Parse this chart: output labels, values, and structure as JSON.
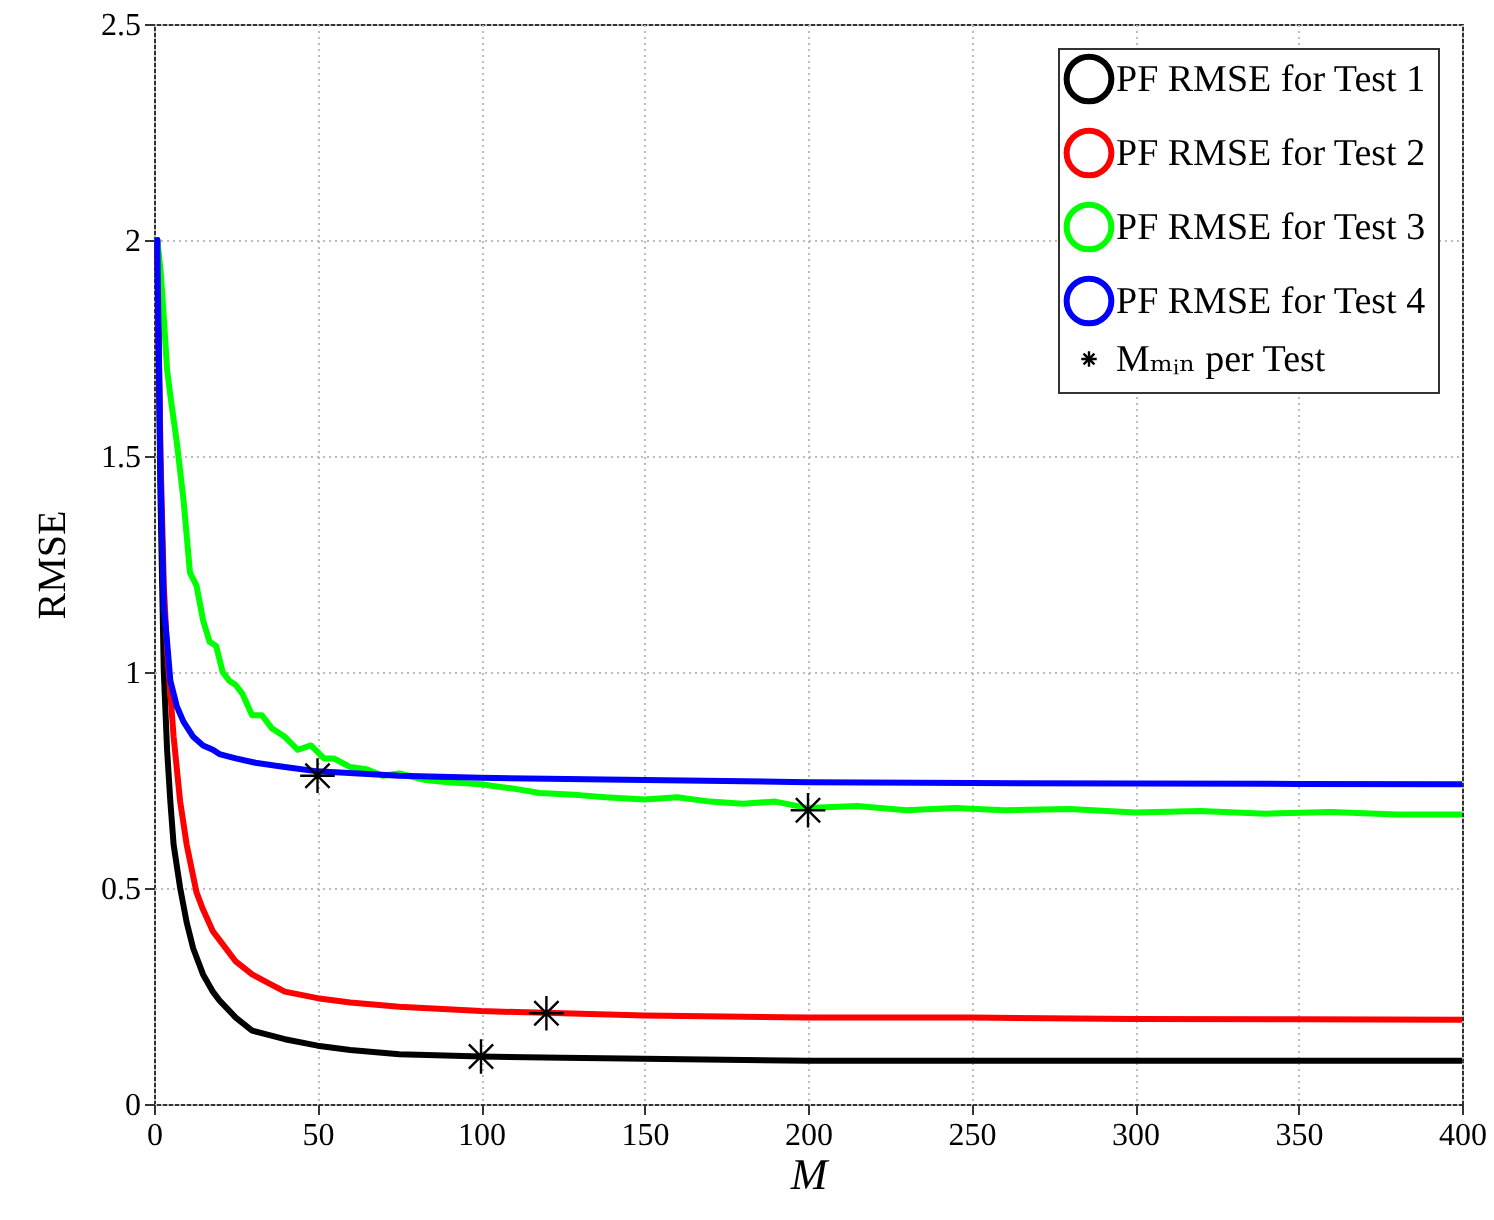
{
  "chart_data": {
    "type": "line",
    "xlabel": "M",
    "ylabel": "RMSE",
    "xlim": [
      0,
      400
    ],
    "xticks": [
      0,
      50,
      100,
      150,
      200,
      250,
      300,
      350,
      400
    ],
    "ylim": [
      0,
      2.5
    ],
    "yticks": [
      0,
      0.5,
      1,
      1.5,
      2,
      2.5
    ],
    "grid": true,
    "legend": "top right",
    "series": [
      {
        "name": "PF RMSE for Test 1",
        "color": "#000000",
        "x": [
          1,
          2,
          3,
          4,
          5,
          6,
          8,
          10,
          12,
          15,
          18,
          20,
          25,
          30,
          35,
          40,
          50,
          60,
          75,
          100,
          125,
          150,
          200,
          250,
          300,
          350,
          400
        ],
        "values": [
          2.0,
          1.4,
          1.0,
          0.82,
          0.7,
          0.6,
          0.5,
          0.42,
          0.36,
          0.3,
          0.26,
          0.24,
          0.2,
          0.17,
          0.16,
          0.15,
          0.135,
          0.125,
          0.115,
          0.11,
          0.107,
          0.105,
          0.1,
          0.1,
          0.1,
          0.1,
          0.1
        ]
      },
      {
        "name": "PF RMSE for Test 2",
        "color": "#ff0000",
        "x": [
          1,
          2,
          3,
          4,
          5,
          6,
          8,
          10,
          13,
          15,
          18,
          20,
          25,
          30,
          35,
          40,
          50,
          60,
          75,
          100,
          125,
          150,
          200,
          250,
          300,
          350,
          400
        ],
        "values": [
          2.0,
          1.5,
          1.2,
          1.05,
          0.95,
          0.85,
          0.7,
          0.6,
          0.49,
          0.45,
          0.4,
          0.38,
          0.33,
          0.3,
          0.28,
          0.26,
          0.245,
          0.235,
          0.225,
          0.215,
          0.21,
          0.205,
          0.2,
          0.2,
          0.197,
          0.196,
          0.195
        ]
      },
      {
        "name": "PF RMSE for Test 3",
        "color": "#00ff00",
        "x": [
          1,
          2,
          3,
          4,
          5,
          7,
          9,
          11,
          13,
          15,
          17,
          19,
          21,
          23,
          25,
          27,
          30,
          33,
          36,
          40,
          44,
          48,
          52,
          55,
          60,
          65,
          70,
          75,
          83,
          90,
          100,
          110,
          118,
          130,
          138,
          150,
          160,
          170,
          180,
          190,
          200,
          215,
          230,
          245,
          260,
          280,
          300,
          320,
          340,
          360,
          380,
          400
        ],
        "values": [
          2.0,
          1.93,
          1.82,
          1.7,
          1.64,
          1.53,
          1.4,
          1.23,
          1.2,
          1.12,
          1.07,
          1.06,
          1.0,
          0.98,
          0.97,
          0.95,
          0.9,
          0.9,
          0.87,
          0.85,
          0.82,
          0.83,
          0.8,
          0.8,
          0.78,
          0.775,
          0.76,
          0.765,
          0.75,
          0.745,
          0.74,
          0.73,
          0.72,
          0.715,
          0.71,
          0.705,
          0.71,
          0.7,
          0.695,
          0.7,
          0.685,
          0.69,
          0.68,
          0.685,
          0.68,
          0.683,
          0.675,
          0.678,
          0.672,
          0.676,
          0.67,
          0.67
        ]
      },
      {
        "name": "PF RMSE for Test 4",
        "color": "#0000ff",
        "x": [
          1,
          2,
          3,
          4,
          5,
          7,
          9,
          12,
          15,
          18,
          20,
          25,
          31,
          40,
          50,
          75,
          100,
          150,
          200,
          250,
          300,
          350,
          400
        ],
        "values": [
          2.0,
          1.45,
          1.15,
          1.07,
          0.98,
          0.92,
          0.885,
          0.85,
          0.83,
          0.82,
          0.81,
          0.8,
          0.79,
          0.78,
          0.77,
          0.76,
          0.755,
          0.75,
          0.745,
          0.743,
          0.742,
          0.741,
          0.74
        ]
      },
      {
        "name": "Mₘᵢₙ per Test",
        "type": "scatter",
        "marker": "cross",
        "color": "#000000",
        "x": [
          100,
          120,
          200,
          50
        ],
        "values": [
          0.11,
          0.21,
          0.68,
          0.76
        ]
      }
    ]
  }
}
